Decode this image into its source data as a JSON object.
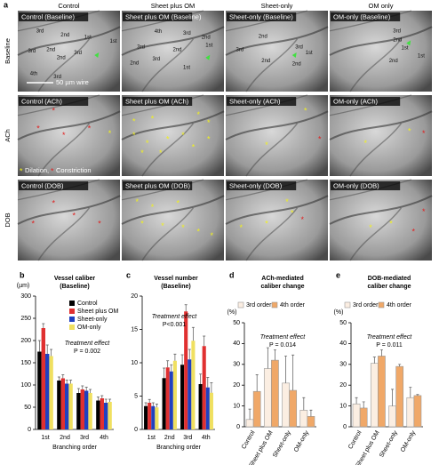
{
  "images": {
    "panel": "a",
    "columns": [
      "Control",
      "Sheet plus OM",
      "Sheet-only",
      "OM only"
    ],
    "rows": [
      "Baseline",
      "ACh",
      "DOB"
    ],
    "tiles": [
      [
        "Control (Baseline)",
        "Sheet plus OM (Baseline)",
        "Sheet-only (Baseline)",
        "OM-only (Baseline)"
      ],
      [
        "Control (ACh)",
        "Sheet plus OM (ACh)",
        "Sheet-only (ACh)",
        "OM-only (ACh)"
      ],
      [
        "Control (DOB)",
        "Sheet plus OM (DOB)",
        "Sheet-only (DOB)",
        "OM-only (DOB)"
      ]
    ],
    "vessel_labels": [
      [
        "3rd",
        "2nd",
        "1st",
        "1st",
        "2nd",
        "3rd",
        "3rd",
        "2nd",
        "4th",
        "3rd"
      ],
      [
        "4th",
        "3rd",
        "2nd",
        "1st",
        "3rd",
        "2nd",
        "3rd",
        "2nd",
        "1st"
      ],
      [
        "2nd",
        "3rd",
        "3rd",
        "1st",
        "2nd",
        "2nd"
      ],
      [
        "3rd",
        "2nd",
        "1st",
        "1st",
        "2nd"
      ]
    ],
    "scale_label": "50 µm wire",
    "legend": [
      "Dilation,",
      "Constriction"
    ]
  },
  "chart_data": [
    {
      "type": "bar",
      "panel": "b",
      "title": [
        "Vessel caliber",
        "(Baseline)"
      ],
      "ylabel": "(µm)",
      "xlabel": "Branching order",
      "categories": [
        "1st",
        "2nd",
        "3rd",
        "4th"
      ],
      "series": [
        {
          "name": "Control",
          "color": "#000000",
          "values": [
            175,
            110,
            82,
            65
          ],
          "errors": [
            25,
            8,
            10,
            8
          ]
        },
        {
          "name": "Sheet plus OM",
          "color": "#e03030",
          "values": [
            228,
            115,
            90,
            70
          ],
          "errors": [
            10,
            8,
            8,
            6
          ]
        },
        {
          "name": "Sheet-only",
          "color": "#2040c0",
          "values": [
            170,
            103,
            87,
            60
          ],
          "errors": [
            20,
            8,
            8,
            8
          ]
        },
        {
          "name": "OM-only",
          "color": "#f0e060",
          "values": [
            165,
            103,
            82,
            62
          ],
          "errors": [
            15,
            8,
            8,
            6
          ]
        }
      ],
      "ylim": [
        0,
        300
      ],
      "yticks": [
        0,
        50,
        100,
        150,
        200,
        250,
        300
      ],
      "annotation": [
        "Treatment effect",
        "P = 0.002"
      ]
    },
    {
      "type": "bar",
      "panel": "c",
      "title": [
        "Vessel number",
        "(Baseline)"
      ],
      "xlabel": "Branching order",
      "categories": [
        "1st",
        "2nd",
        "3rd",
        "4th"
      ],
      "series": [
        {
          "name": "Control",
          "color": "#000000",
          "values": [
            3.5,
            7.7,
            9.7,
            6.8
          ],
          "errors": [
            0.5,
            1.5,
            1.5,
            1.5
          ]
        },
        {
          "name": "Sheet plus OM",
          "color": "#e03030",
          "values": [
            4,
            9.3,
            17.7,
            12.5
          ],
          "errors": [
            0.5,
            1,
            1,
            1.5
          ]
        },
        {
          "name": "Sheet-only",
          "color": "#2040c0",
          "values": [
            3.5,
            8.7,
            10.5,
            6.3
          ],
          "errors": [
            0.5,
            1,
            1.5,
            1.5
          ]
        },
        {
          "name": "OM-only",
          "color": "#f0e060",
          "values": [
            3.3,
            10.3,
            13.3,
            5.5
          ],
          "errors": [
            0.5,
            1,
            2,
            1.5
          ]
        }
      ],
      "ylim": [
        0,
        20
      ],
      "yticks": [
        0,
        5,
        10,
        15,
        20
      ],
      "annotation": [
        "Treatment effect",
        "P<0.001"
      ]
    },
    {
      "type": "bar",
      "panel": "d",
      "title": [
        "ACh-mediated",
        "caliber change"
      ],
      "ylabel": "(%)",
      "categories": [
        "Control",
        "Sheet plus OM",
        "Sheet-only",
        "OM-only"
      ],
      "series": [
        {
          "name": "3rd order",
          "color": "#fbeee2",
          "values": [
            3.5,
            28,
            21,
            8
          ],
          "errors": [
            5,
            10,
            13,
            6
          ]
        },
        {
          "name": "4th order",
          "color": "#f0a868",
          "values": [
            17,
            32,
            17.5,
            5
          ],
          "errors": [
            8,
            5,
            17,
            3
          ]
        }
      ],
      "ylim": [
        0,
        50
      ],
      "yticks": [
        0,
        10,
        20,
        30,
        40,
        50
      ],
      "annotation": [
        "Treatment effect",
        "P = 0.014"
      ]
    },
    {
      "type": "bar",
      "panel": "e",
      "title": [
        "DOB-mediated",
        "caliber change"
      ],
      "ylabel": "(%)",
      "categories": [
        "Control",
        "Sheet plus OM",
        "Sheet-only",
        "OM-only"
      ],
      "series": [
        {
          "name": "3rd order",
          "color": "#fbeee2",
          "values": [
            11,
            30.5,
            10,
            14
          ],
          "errors": [
            3,
            3,
            8,
            5
          ]
        },
        {
          "name": "4th order",
          "color": "#f0a868",
          "values": [
            9,
            34,
            29,
            15
          ],
          "errors": [
            3,
            3,
            1,
            0.5
          ]
        }
      ],
      "ylim": [
        0,
        50
      ],
      "yticks": [
        0,
        10,
        20,
        30,
        40,
        50
      ],
      "annotation": [
        "Treatment effect",
        "P = 0.011"
      ]
    }
  ]
}
